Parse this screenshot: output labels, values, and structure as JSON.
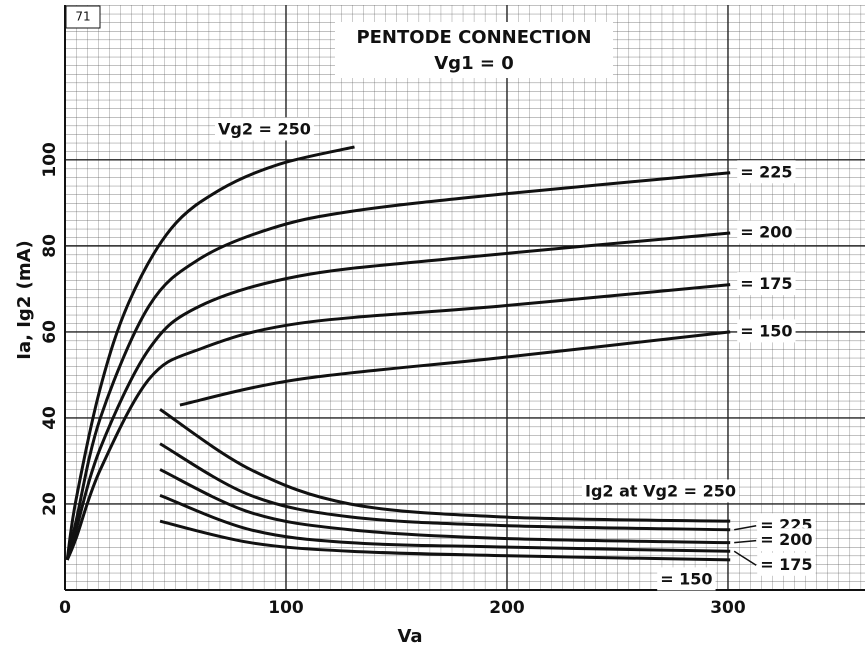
{
  "chart_data": {
    "type": "line",
    "corner_label": "71",
    "title": "PENTODE CONNECTION",
    "subtitle": "Vg1 = 0",
    "x_label": "Va",
    "y_label": "Ia, Ig2 (mA)",
    "xlim": [
      0,
      362
    ],
    "ylim": [
      0,
      136
    ],
    "xticks": [
      0,
      100,
      200,
      300
    ],
    "yticks": [
      20,
      40,
      60,
      80,
      100
    ],
    "grid": true,
    "series": [
      {
        "name": "Vg2 = 250",
        "color": "#111111",
        "x": [
          1,
          5,
          16,
          29,
          48,
          70,
          97,
          131
        ],
        "values": [
          7,
          21,
          47,
          67,
          84,
          93,
          99,
          103
        ]
      },
      {
        "name": "= 225",
        "color": "#111111",
        "x": [
          1,
          5,
          16,
          38,
          61,
          93,
          129,
          197,
          301
        ],
        "values": [
          7,
          16,
          40,
          66,
          77,
          84,
          88,
          92,
          97
        ]
      },
      {
        "name": "= 200",
        "color": "#111111",
        "x": [
          1,
          5,
          16,
          38,
          61,
          106,
          174,
          301
        ],
        "values": [
          7,
          14,
          33,
          56,
          66,
          73,
          77,
          83
        ]
      },
      {
        "name": "= 175",
        "color": "#111111",
        "x": [
          1,
          5,
          16,
          38,
          61,
          106,
          197,
          301
        ],
        "values": [
          7,
          12,
          28,
          49,
          56,
          62,
          66,
          71
        ]
      },
      {
        "name": "= 150",
        "color": "#111111",
        "x": [
          52,
          106,
          197,
          301
        ],
        "values": [
          43,
          49,
          54,
          60
        ]
      },
      {
        "name": "Ig2 at Vg2 = 250",
        "color": "#111111",
        "x": [
          43,
          84,
          129,
          197,
          301
        ],
        "values": [
          42,
          28,
          20,
          17,
          16
        ]
      },
      {
        "name": "= 225",
        "color": "#111111",
        "x": [
          43,
          84,
          129,
          197,
          301
        ],
        "values": [
          34,
          22,
          17,
          15,
          14
        ]
      },
      {
        "name": "= 200",
        "color": "#111111",
        "x": [
          43,
          84,
          129,
          197,
          301
        ],
        "values": [
          28,
          18,
          14,
          12,
          11
        ]
      },
      {
        "name": "= 175",
        "color": "#111111",
        "x": [
          43,
          84,
          129,
          197,
          301
        ],
        "values": [
          22,
          14,
          11,
          10,
          9
        ]
      },
      {
        "name": "= 150",
        "color": "#111111",
        "x": [
          43,
          84,
          129,
          197,
          301
        ],
        "values": [
          16,
          11,
          9,
          8,
          7
        ]
      }
    ]
  }
}
